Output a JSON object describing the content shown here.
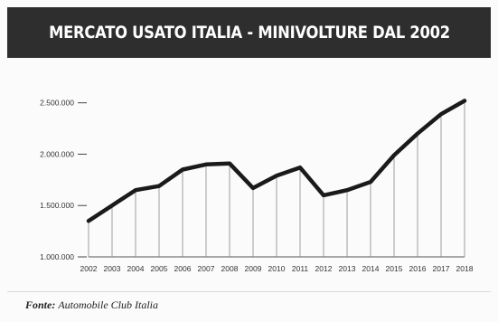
{
  "header": {
    "title": "MERCATO USATO ITALIA - MINIVOLTURE DAL 2002"
  },
  "source": {
    "label": "Fonte",
    "separator": ":",
    "value": "Automobile Club Italia"
  },
  "colors": {
    "header_bg": "#2e2e2e",
    "line": "#1a1a1a",
    "grid": "#888888"
  },
  "chart_data": {
    "type": "line",
    "title": "",
    "xlabel": "",
    "ylabel": "",
    "x": [
      "2002",
      "2003",
      "2004",
      "2005",
      "2006",
      "2007",
      "2008",
      "2009",
      "2010",
      "2011",
      "2012",
      "2013",
      "2014",
      "2015",
      "2016",
      "2017",
      "2018"
    ],
    "series": [
      {
        "values": [
          1350000,
          1500000,
          1650000,
          1690000,
          1850000,
          1900000,
          1910000,
          1670000,
          1790000,
          1870000,
          1600000,
          1650000,
          1730000,
          1990000,
          2200000,
          2390000,
          2520000
        ]
      }
    ],
    "yticks": [
      1000000,
      1500000,
      2000000,
      2500000
    ],
    "ytick_labels": [
      "1.000.000",
      "1.500.000",
      "2.000.000",
      "2.500.000"
    ],
    "ylim": [
      1000000,
      2550000
    ],
    "grid": "vertical",
    "legend": "none"
  }
}
